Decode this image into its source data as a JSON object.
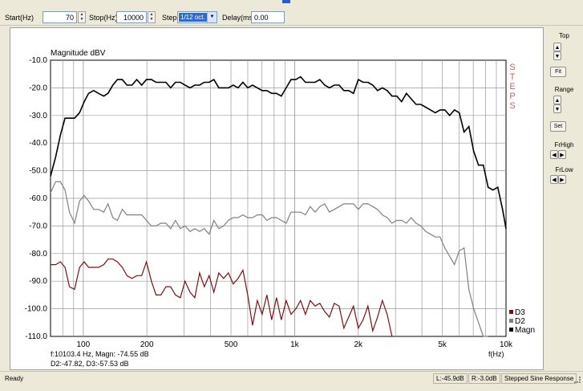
{
  "toolbar": {
    "start_label": "Start(Hz)",
    "start_value": "70",
    "stop_label": "Stop(Hz)",
    "stop_value": "10000",
    "step_label": "Step",
    "step_value": "1/12 oct.",
    "delay_label": "Delay(ms)",
    "delay_value": "0.00"
  },
  "side": {
    "top_label": "Top",
    "fit_label": "Fit",
    "range_label": "Range",
    "set_label": "Set",
    "frhigh_label": "FrHigh",
    "frlow_label": "FrLow"
  },
  "plot": {
    "steps_text": "STEPS",
    "cursor_line1": "f:10103.4 Hz, Magn: -74.55 dB",
    "cursor_line2": "D2:-47.82, D3:-57.53 dB"
  },
  "status": {
    "ready": "Ready",
    "left": "L:-45.9dB",
    "right": "R:-3.0dB",
    "mode": "Stepped Sine Response"
  },
  "chart_data": {
    "type": "line",
    "title": "",
    "xlabel": "f(Hz)",
    "ylabel": "Magnitude dBV",
    "x_scale": "log",
    "xlim": [
      70,
      10000
    ],
    "ylim": [
      -110,
      -10
    ],
    "grid": true,
    "legend_placement": "bottom-right",
    "x_ticks": [
      {
        "value": 100,
        "label": "100"
      },
      {
        "value": 200,
        "label": "200"
      },
      {
        "value": 500,
        "label": "500"
      },
      {
        "value": 1000,
        "label": "1k"
      },
      {
        "value": 2000,
        "label": "2k"
      },
      {
        "value": 5000,
        "label": "5k"
      },
      {
        "value": 10000,
        "label": "10k"
      }
    ],
    "y_ticks": [
      {
        "value": -10,
        "label": "-10.0"
      },
      {
        "value": -20,
        "label": "-20.0"
      },
      {
        "value": -30,
        "label": "-30.0"
      },
      {
        "value": -40,
        "label": "-40.0"
      },
      {
        "value": -50,
        "label": "-50.0"
      },
      {
        "value": -60,
        "label": "-60.0"
      },
      {
        "value": -70,
        "label": "-70.0"
      },
      {
        "value": -80,
        "label": "-80.0"
      },
      {
        "value": -90,
        "label": "-90.0"
      },
      {
        "value": -100,
        "label": "-100.0"
      },
      {
        "value": -110,
        "label": "-110.0"
      }
    ],
    "series": [
      {
        "name": "Magn",
        "color": "#000000",
        "x": [
          70,
          74,
          78,
          82,
          86,
          91,
          96,
          101,
          106,
          112,
          118,
          125,
          131,
          138,
          145,
          153,
          161,
          170,
          179,
          189,
          199,
          210,
          221,
          233,
          246,
          259,
          273,
          288,
          303,
          320,
          337,
          355,
          374,
          394,
          415,
          438,
          461,
          486,
          512,
          540,
          569,
          600,
          632,
          666,
          702,
          739,
          779,
          821,
          865,
          912,
          961,
          1013,
          1067,
          1125,
          1185,
          1249,
          1316,
          1387,
          1461,
          1540,
          1623,
          1710,
          1802,
          1899,
          2001,
          2108,
          2222,
          2341,
          2467,
          2600,
          2740,
          2887,
          3042,
          3206,
          3378,
          3560,
          3751,
          3953,
          4166,
          4390,
          4626,
          4875,
          5137,
          5413,
          5704,
          6011,
          6335,
          6675,
          7034,
          7413,
          7811,
          8231,
          8674,
          9141,
          9632,
          10000
        ],
        "y": [
          -52,
          -45,
          -37,
          -31,
          -31,
          -31,
          -29,
          -25,
          -22,
          -21,
          -22,
          -23,
          -22,
          -19,
          -17,
          -17,
          -19,
          -19,
          -17,
          -19,
          -17,
          -17,
          -18,
          -18,
          -18,
          -20,
          -18,
          -18,
          -19,
          -20,
          -19,
          -19,
          -18,
          -18,
          -17,
          -20,
          -20,
          -20,
          -19,
          -20,
          -18,
          -20,
          -19,
          -20,
          -21,
          -21,
          -22,
          -22,
          -23,
          -20,
          -17,
          -17,
          -16,
          -18,
          -18,
          -18,
          -17,
          -19,
          -20,
          -19,
          -19,
          -21,
          -21,
          -22,
          -17,
          -18,
          -18,
          -19,
          -21,
          -20,
          -21,
          -23,
          -23,
          -25,
          -22,
          -24,
          -26,
          -26,
          -27,
          -28,
          -29,
          -28,
          -28,
          -30,
          -28,
          -29,
          -36,
          -34,
          -43,
          -48,
          -48,
          -56,
          -57,
          -56,
          -64,
          -71
        ]
      },
      {
        "name": "D2",
        "color": "#808080",
        "x": [
          70,
          74,
          78,
          82,
          86,
          91,
          96,
          101,
          106,
          112,
          118,
          125,
          131,
          138,
          145,
          153,
          161,
          170,
          179,
          189,
          199,
          210,
          221,
          233,
          246,
          259,
          273,
          288,
          303,
          320,
          337,
          355,
          374,
          394,
          415,
          438,
          461,
          486,
          512,
          540,
          569,
          600,
          632,
          666,
          702,
          739,
          779,
          821,
          865,
          912,
          961,
          1013,
          1067,
          1125,
          1185,
          1249,
          1316,
          1387,
          1461,
          1540,
          1623,
          1710,
          1802,
          1899,
          2001,
          2108,
          2222,
          2341,
          2467,
          2600,
          2740,
          2887,
          3042,
          3206,
          3378,
          3560,
          3751,
          3953,
          4166,
          4390,
          4626,
          4875,
          5137,
          5413,
          5704,
          6011,
          6335,
          6675,
          7034,
          7413,
          7811,
          8231
        ],
        "y": [
          -58,
          -54,
          -54,
          -57,
          -65,
          -69,
          -61,
          -59,
          -61,
          -64,
          -64,
          -65,
          -62,
          -67,
          -68,
          -64,
          -66,
          -66,
          -66,
          -66,
          -68,
          -70,
          -70,
          -69,
          -69,
          -71,
          -68,
          -71,
          -70,
          -72,
          -71,
          -72,
          -71,
          -73,
          -68,
          -71,
          -70,
          -68,
          -67,
          -67,
          -66,
          -67,
          -67,
          -66,
          -66,
          -68,
          -67,
          -67,
          -68,
          -69,
          -65,
          -65,
          -65,
          -66,
          -63,
          -65,
          -63,
          -62,
          -65,
          -64,
          -63,
          -62,
          -62,
          -62,
          -64,
          -62,
          -62,
          -63,
          -64,
          -66,
          -67,
          -69,
          -68,
          -68,
          -69,
          -67,
          -69,
          -70,
          -72,
          -73,
          -74,
          -74,
          -78,
          -81,
          -84,
          -79,
          -78,
          -93,
          -100,
          -105,
          -110,
          -112
        ]
      },
      {
        "name": "D3",
        "color": "#7a1010",
        "x": [
          70,
          74,
          78,
          82,
          86,
          91,
          96,
          101,
          106,
          112,
          118,
          125,
          131,
          138,
          145,
          153,
          161,
          170,
          179,
          189,
          199,
          210,
          221,
          233,
          246,
          259,
          273,
          288,
          303,
          320,
          337,
          355,
          374,
          394,
          415,
          438,
          461,
          486,
          512,
          540,
          569,
          600,
          632,
          666,
          702,
          739,
          779,
          821,
          865,
          912,
          961,
          1013,
          1067,
          1125,
          1185,
          1249,
          1316,
          1387,
          1461,
          1540,
          1623,
          1710,
          1802,
          1899,
          2001,
          2108,
          2222,
          2341,
          2467,
          2600,
          2740,
          2887
        ],
        "y": [
          -84,
          -84,
          -83,
          -85,
          -92,
          -93,
          -85,
          -83,
          -85,
          -85,
          -85,
          -84,
          -82,
          -82,
          -83,
          -85,
          -88,
          -89,
          -88,
          -88,
          -83,
          -90,
          -95,
          -95,
          -92,
          -92,
          -95,
          -96,
          -90,
          -94,
          -96,
          -87,
          -92,
          -88,
          -94,
          -87,
          -89,
          -87,
          -91,
          -89,
          -86,
          -95,
          -106,
          -97,
          -102,
          -95,
          -104,
          -96,
          -104,
          -97,
          -102,
          -100,
          -97,
          -102,
          -97,
          -99,
          -98,
          -101,
          -103,
          -98,
          -99,
          -107,
          -103,
          -99,
          -107,
          -104,
          -99,
          -108,
          -103,
          -97,
          -102,
          -110
        ]
      }
    ]
  }
}
